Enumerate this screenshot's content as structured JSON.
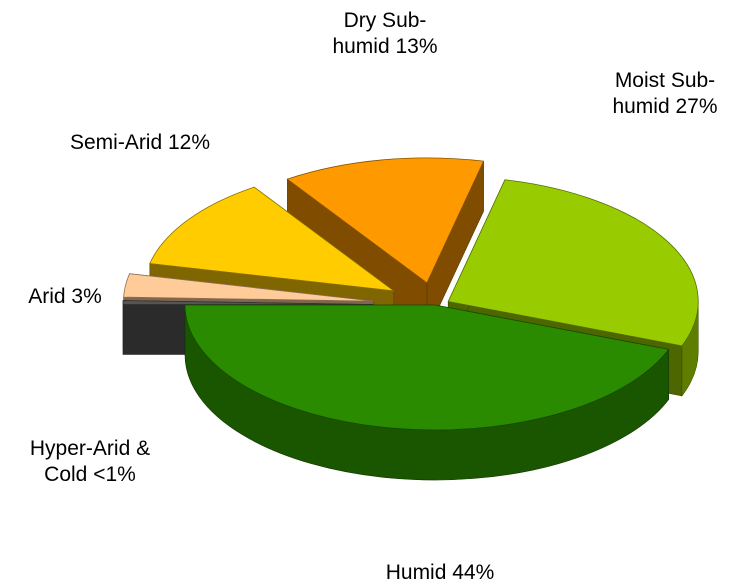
{
  "chart_data": {
    "type": "pie3d",
    "categories": [
      "Humid",
      "Moist Sub-humid",
      "Dry Sub-humid",
      "Semi-Arid",
      "Arid",
      "Hyper-Arid & Cold"
    ],
    "values": [
      44,
      27,
      13,
      12,
      3,
      0.5
    ],
    "value_labels": [
      "44%",
      "27%",
      "13%",
      "12%",
      "3%",
      "<1%"
    ],
    "colors": [
      "#2a8a00",
      "#99cc00",
      "#ff9900",
      "#ffcc00",
      "#ffcc99",
      "#555555"
    ]
  }
}
